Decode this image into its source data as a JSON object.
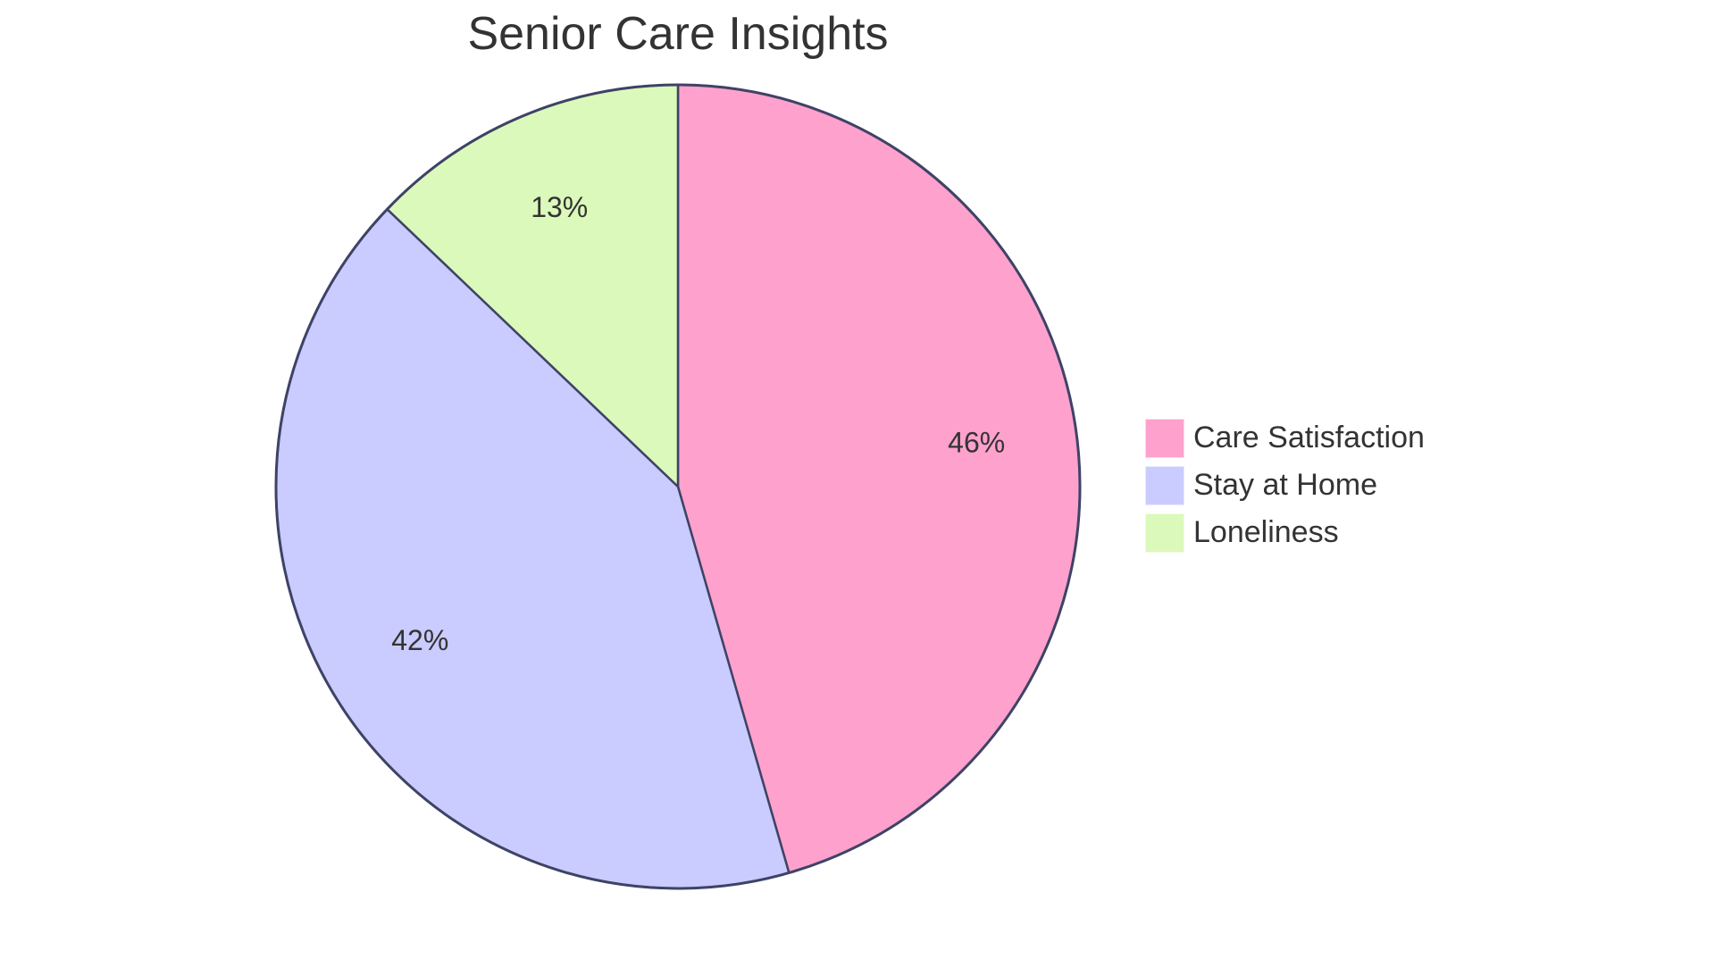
{
  "chart_data": {
    "type": "pie",
    "title": "Senior Care Insights",
    "categories": [
      "Care Satisfaction",
      "Stay at Home",
      "Loneliness"
    ],
    "values": [
      46,
      42,
      13
    ],
    "labels": [
      "46%",
      "42%",
      "13%"
    ],
    "colors": [
      "#FFA1CD",
      "#CACBFE",
      "#DBF9BA"
    ],
    "stroke_color": "#3E4366",
    "start_angle_deg": 0,
    "direction": "clockwise",
    "legend_position": "right"
  },
  "legend": {
    "items": [
      {
        "label": "Care Satisfaction",
        "color": "#FFA1CD"
      },
      {
        "label": "Stay at Home",
        "color": "#CACBFE"
      },
      {
        "label": "Loneliness",
        "color": "#DBF9BA"
      }
    ]
  }
}
